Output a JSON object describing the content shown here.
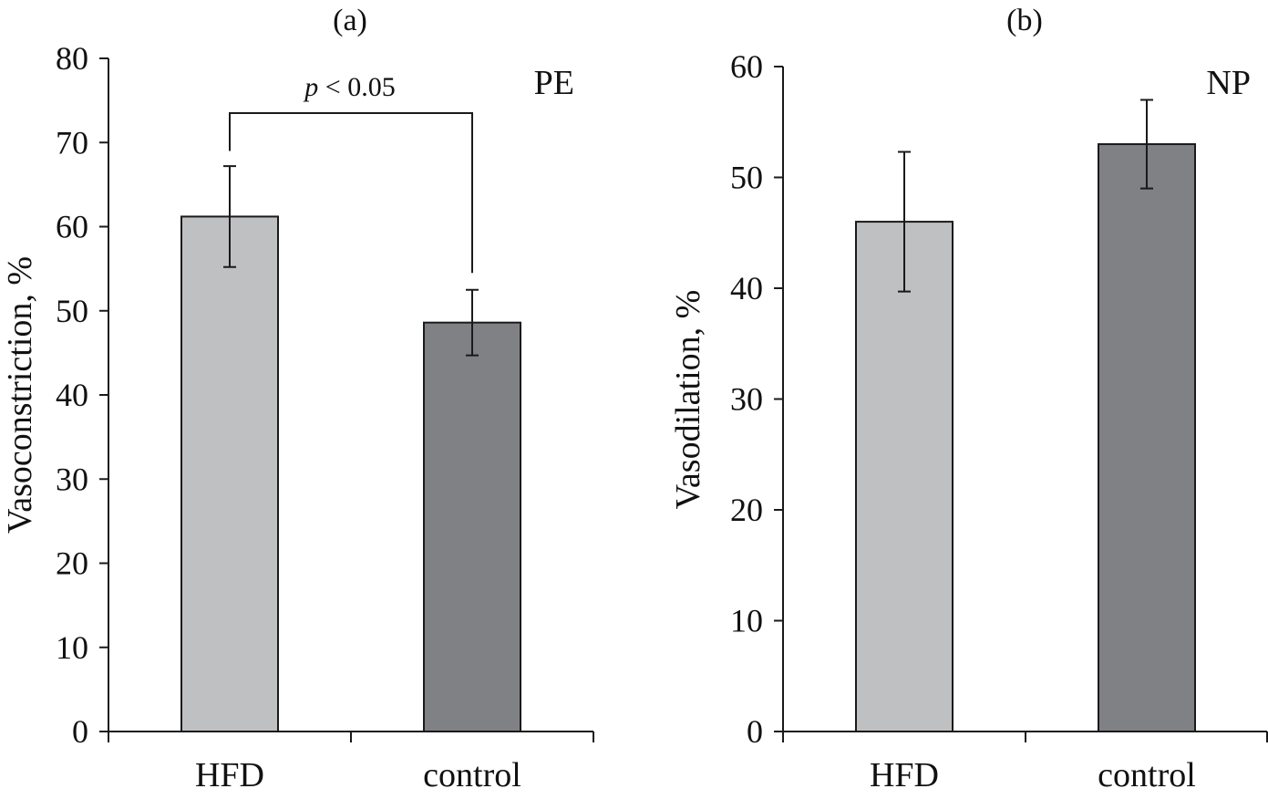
{
  "chart_data": [
    {
      "type": "bar",
      "panel_label": "(a)",
      "annotation": "PE",
      "ylabel": "Vasoconstriction, %",
      "ylim": [
        0,
        80
      ],
      "yticks": [
        0,
        10,
        20,
        30,
        40,
        50,
        60,
        70,
        80
      ],
      "categories": [
        "HFD",
        "control"
      ],
      "values": [
        61.2,
        48.6
      ],
      "errors": [
        6.0,
        3.9
      ],
      "bar_colors": [
        "#bfc0c2",
        "#808184"
      ],
      "significance": {
        "p_prefix": "p",
        "p_text": " < 0.05",
        "between": [
          "HFD",
          "control"
        ],
        "bracket_y": 73.5,
        "left_end_y": 69.0,
        "right_end_y": 54.5
      }
    },
    {
      "type": "bar",
      "panel_label": "(b)",
      "annotation": "NP",
      "ylabel": "Vasodilation, %",
      "ylim": [
        0,
        60
      ],
      "yticks": [
        0,
        10,
        20,
        30,
        40,
        50,
        60
      ],
      "categories": [
        "HFD",
        "control"
      ],
      "values": [
        46.0,
        53.0
      ],
      "errors": [
        6.3,
        4.0
      ],
      "bar_colors": [
        "#bfc0c2",
        "#808184"
      ]
    }
  ]
}
